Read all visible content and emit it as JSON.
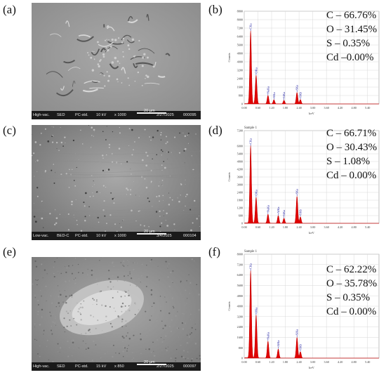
{
  "panels": [
    {
      "label": "(a)",
      "sem": {
        "mode": "High-vac.",
        "detector": "SED",
        "preset": "PC-std.",
        "kv": "10 kV",
        "mag": "x 1000",
        "scale": "20 µm",
        "date": "2/27/2025",
        "img": "000095",
        "tone": "#8c8c8c"
      }
    },
    {
      "label": "(b)",
      "eds": {
        "sample_title": "",
        "ylabel": "Counts",
        "xlabel": "keV",
        "yticks": [
          "0",
          "800",
          "1600",
          "2400",
          "3200",
          "4000",
          "4800",
          "5600",
          "6400",
          "7200",
          "8000",
          "8800"
        ],
        "ymax": 8800,
        "xticks": [
          "0.00",
          "0.40",
          "0.80",
          "1.20",
          "1.60",
          "2.00",
          "2.40",
          "2.80",
          "3.20",
          "3.60",
          "4.00",
          "4.40",
          "4.80",
          "5.20",
          "5.60",
          "6.00",
          "6.40",
          "6.80",
          "7.20",
          "7.60",
          "8.00",
          "8.40",
          "8.80",
          "9.20",
          "9.60",
          "10.00"
        ],
        "xtick_labels": [
          "0.00",
          "0.60",
          "1.20",
          "1.80",
          "2.40",
          "3.00",
          "3.60",
          "4.20",
          "4.80",
          "5.40"
        ],
        "peaks": [
          {
            "name": "CKa",
            "kev": 0.28,
            "counts": 6900
          },
          {
            "name": "OKa",
            "kev": 0.52,
            "counts": 2700
          },
          {
            "name": "NaKa",
            "kev": 1.04,
            "counts": 800
          },
          {
            "name": "SKa",
            "kev": 1.3,
            "counts": 400
          },
          {
            "name": "SiKa",
            "kev": 1.74,
            "counts": 350
          },
          {
            "name": "SKa",
            "kev": 2.31,
            "counts": 1100
          },
          {
            "name": "SKb",
            "kev": 2.46,
            "counts": 420
          }
        ],
        "composition": [
          "C – 66.76%",
          "O – 31.45%",
          "S – 0.35%",
          "Cd –0.00%"
        ]
      }
    },
    {
      "label": "(c)",
      "sem": {
        "mode": "Low-vac.",
        "detector": "BED-C",
        "preset": "PC-std.",
        "kv": "10 kV",
        "mag": "x 1000",
        "scale": "20 µm",
        "date": "3/4/2025",
        "img": "000104",
        "tone": "#707070"
      }
    },
    {
      "label": "(d)",
      "eds": {
        "sample_title": "Sample 1",
        "ylabel": "Counts",
        "xlabel": "keV",
        "yticks": [
          "0",
          "600",
          "1200",
          "1800",
          "2400",
          "3000",
          "3600",
          "4200",
          "4800",
          "5400",
          "6000",
          "7200"
        ],
        "ymax": 7200,
        "xtick_labels": [
          "0.00",
          "0.60",
          "1.20",
          "1.80",
          "2.40",
          "3.00",
          "3.60",
          "4.20",
          "4.80",
          "5.40"
        ],
        "peaks": [
          {
            "name": "CKa",
            "kev": 0.28,
            "counts": 6000
          },
          {
            "name": "OKa",
            "kev": 0.52,
            "counts": 2000
          },
          {
            "name": "NaKa",
            "kev": 1.04,
            "counts": 700
          },
          {
            "name": "AlKa",
            "kev": 1.49,
            "counts": 600
          },
          {
            "name": "SiKa",
            "kev": 1.74,
            "counts": 400
          },
          {
            "name": "SKa",
            "kev": 2.31,
            "counts": 2100
          },
          {
            "name": "SKb",
            "kev": 2.46,
            "counts": 500
          }
        ],
        "composition": [
          "C – 66.71%",
          "O – 30.43%",
          "S – 1.08%",
          "Cd – 0.00%"
        ]
      }
    },
    {
      "label": "(e)",
      "sem": {
        "mode": "High-vac.",
        "detector": "SED",
        "preset": "PC-std.",
        "kv": "15 kV",
        "mag": "x 850",
        "scale": "20 µm",
        "date": "2/27/2025",
        "img": "000097",
        "tone": "#7a7a7a"
      }
    },
    {
      "label": "(f)",
      "eds": {
        "sample_title": "Sample 1",
        "ylabel": "Counts",
        "xlabel": "keV",
        "yticks": [
          "0",
          "800",
          "1600",
          "2400",
          "3200",
          "4000",
          "4800",
          "5600",
          "6400",
          "7200",
          "8000"
        ],
        "ymax": 8000,
        "xtick_labels": [
          "0.00",
          "0.60",
          "1.20",
          "1.80",
          "2.40",
          "3.00",
          "3.60",
          "4.20",
          "4.80",
          "5.40"
        ],
        "peaks": [
          {
            "name": "CKa",
            "kev": 0.28,
            "counts": 6700
          },
          {
            "name": "OKa",
            "kev": 0.52,
            "counts": 3300
          },
          {
            "name": "NaKa",
            "kev": 1.04,
            "counts": 1300
          },
          {
            "name": "AlKa",
            "kev": 1.49,
            "counts": 700
          },
          {
            "name": "SiKa",
            "kev": 2.31,
            "counts": 1600
          },
          {
            "name": "SKb",
            "kev": 2.46,
            "counts": 500
          }
        ],
        "composition": [
          "C – 62.22%",
          "O – 35.78%",
          "S – 0.35%",
          "Cd – 0.00%"
        ]
      }
    }
  ]
}
